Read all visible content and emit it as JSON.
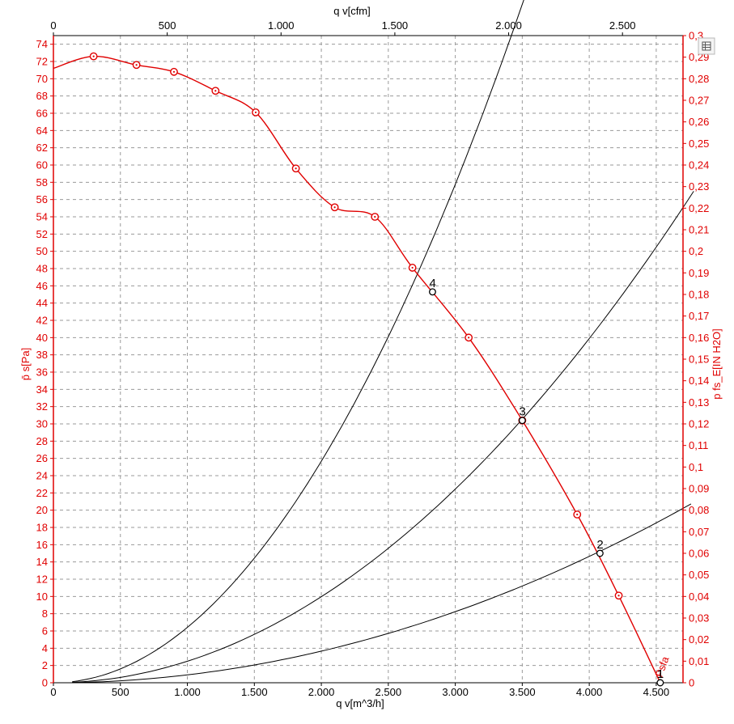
{
  "chart_data": {
    "type": "line",
    "x_axis_bottom": {
      "label": "q v[m^3/h]",
      "range": [
        0,
        4700
      ],
      "ticks": [
        0,
        500,
        1000,
        1500,
        2000,
        2500,
        3000,
        3500,
        4000,
        4500
      ],
      "tick_labels": [
        "0",
        "500",
        "1.000",
        "1.500",
        "2.000",
        "2.500",
        "3.000",
        "3.500",
        "4.000",
        "4.500"
      ]
    },
    "x_axis_top": {
      "label": "q v[cfm]",
      "range": [
        0,
        2766
      ],
      "ticks": [
        0,
        500,
        1000,
        1500,
        2000,
        2500
      ],
      "tick_labels": [
        "0",
        "500",
        "1.000",
        "1.500",
        "2.000",
        "2.500"
      ]
    },
    "y_axis_left": {
      "label": "p̄ s[Pa]",
      "range": [
        0,
        75
      ],
      "ticks": [
        0,
        2,
        4,
        6,
        8,
        10,
        12,
        14,
        16,
        18,
        20,
        22,
        24,
        26,
        28,
        30,
        32,
        34,
        36,
        38,
        40,
        42,
        44,
        46,
        48,
        50,
        52,
        54,
        56,
        58,
        60,
        62,
        64,
        66,
        68,
        70,
        72,
        74
      ]
    },
    "y_axis_right": {
      "label": "p fs_E[IN H2O]",
      "range": [
        0,
        0.3
      ],
      "ticks": [
        0,
        0.01,
        0.02,
        0.03,
        0.04,
        0.05,
        0.06,
        0.07,
        0.08,
        0.09,
        0.1,
        0.11,
        0.12,
        0.13,
        0.14,
        0.15,
        0.16,
        0.17,
        0.18,
        0.19,
        0.2,
        0.21,
        0.22,
        0.23,
        0.24,
        0.25,
        0.26,
        0.27,
        0.28,
        0.29,
        0.3
      ],
      "tick_labels": [
        "0",
        "0,01",
        "0,02",
        "0,03",
        "0,04",
        "0,05",
        "0,06",
        "0,07",
        "0,08",
        "0,09",
        "0,1",
        "0,11",
        "0,12",
        "0,13",
        "0,14",
        "0,15",
        "0,16",
        "0,17",
        "0,18",
        "0,19",
        "0,2",
        "0,21",
        "0,22",
        "0,23",
        "0,24",
        "0,25",
        "0,26",
        "0,27",
        "0,28",
        "0,29",
        "0,3"
      ]
    },
    "grid": true,
    "series": [
      {
        "name": "Psfa",
        "color": "#e00000",
        "markers": "circle-dot",
        "x": [
          0,
          300,
          620,
          900,
          1210,
          1510,
          1810,
          2100,
          2400,
          2680,
          3100,
          3500,
          3910,
          4220,
          4530
        ],
        "y": [
          71.2,
          72.6,
          71.6,
          70.8,
          68.6,
          66.1,
          59.6,
          55.1,
          54.0,
          48.1,
          40.0,
          30.4,
          19.5,
          10.1,
          0
        ]
      }
    ],
    "system_curves": [
      {
        "k": 6.418e-06,
        "x_end": 3650
      },
      {
        "k": 2.493e-06,
        "x_end": 4780
      },
      {
        "k": 9.15e-07,
        "x_end": 4760
      },
      {
        "k": 1e-10,
        "x_end": 4530
      }
    ],
    "operating_points": [
      {
        "label": "1",
        "x": 4530,
        "y": 0
      },
      {
        "label": "2",
        "x": 4080,
        "y": 15.0
      },
      {
        "label": "3",
        "x": 3500,
        "y": 30.4
      },
      {
        "label": "4",
        "x": 2830,
        "y": 45.3
      }
    ]
  },
  "toolbar": {
    "icon": "table-view-icon"
  }
}
